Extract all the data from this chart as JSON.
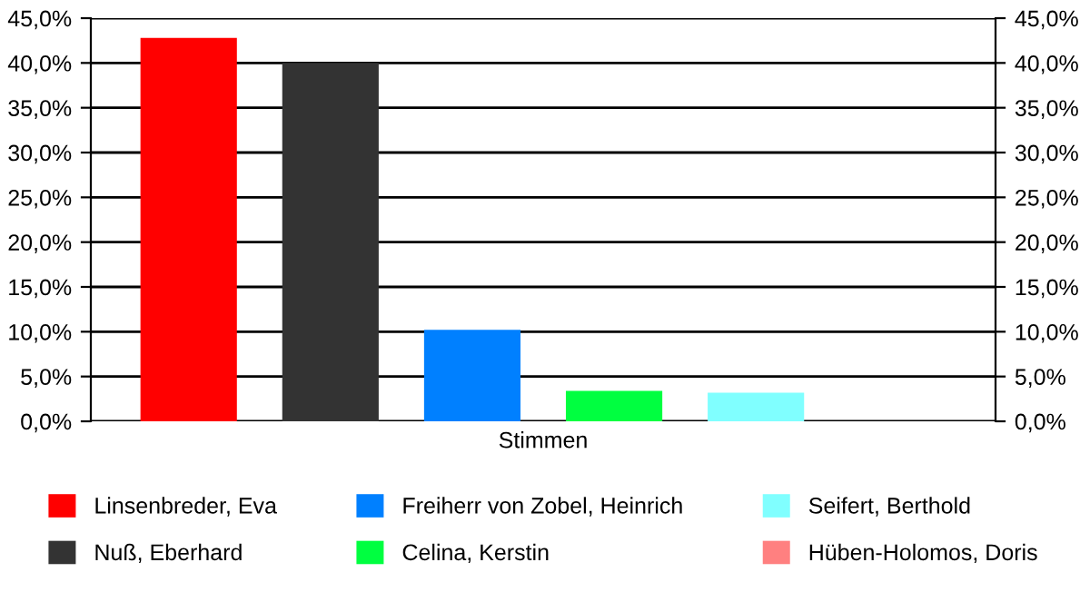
{
  "chart_data": {
    "type": "bar",
    "categories": [
      "Stimmen"
    ],
    "series": [
      {
        "name": "Linsenbreder, Eva",
        "color": "#ff0000",
        "values": [
          42.8
        ]
      },
      {
        "name": "Nuß, Eberhard",
        "color": "#333333",
        "values": [
          40.0
        ]
      },
      {
        "name": "Freiherr von Zobel, Heinrich",
        "color": "#0080ff",
        "values": [
          10.2
        ]
      },
      {
        "name": "Celina, Kerstin",
        "color": "#00ff40",
        "values": [
          3.4
        ]
      },
      {
        "name": "Seifert, Berthold",
        "color": "#80ffff",
        "values": [
          3.2
        ]
      },
      {
        "name": "Hüben-Holomos, Doris",
        "color": "#ff8080",
        "values": [
          0
        ]
      }
    ],
    "ylim": [
      0,
      45
    ],
    "yticks": [
      {
        "value": 0,
        "label": "0,0%"
      },
      {
        "value": 5,
        "label": "5,0%"
      },
      {
        "value": 10,
        "label": "10,0%"
      },
      {
        "value": 15,
        "label": "15,0%"
      },
      {
        "value": 20,
        "label": "20,0%"
      },
      {
        "value": 25,
        "label": "25,0%"
      },
      {
        "value": 30,
        "label": "30,0%"
      },
      {
        "value": 35,
        "label": "35,0%"
      },
      {
        "value": 40,
        "label": "40,0%"
      },
      {
        "value": 45,
        "label": "45,0%"
      }
    ],
    "grid": "y",
    "legend": "bottom"
  }
}
